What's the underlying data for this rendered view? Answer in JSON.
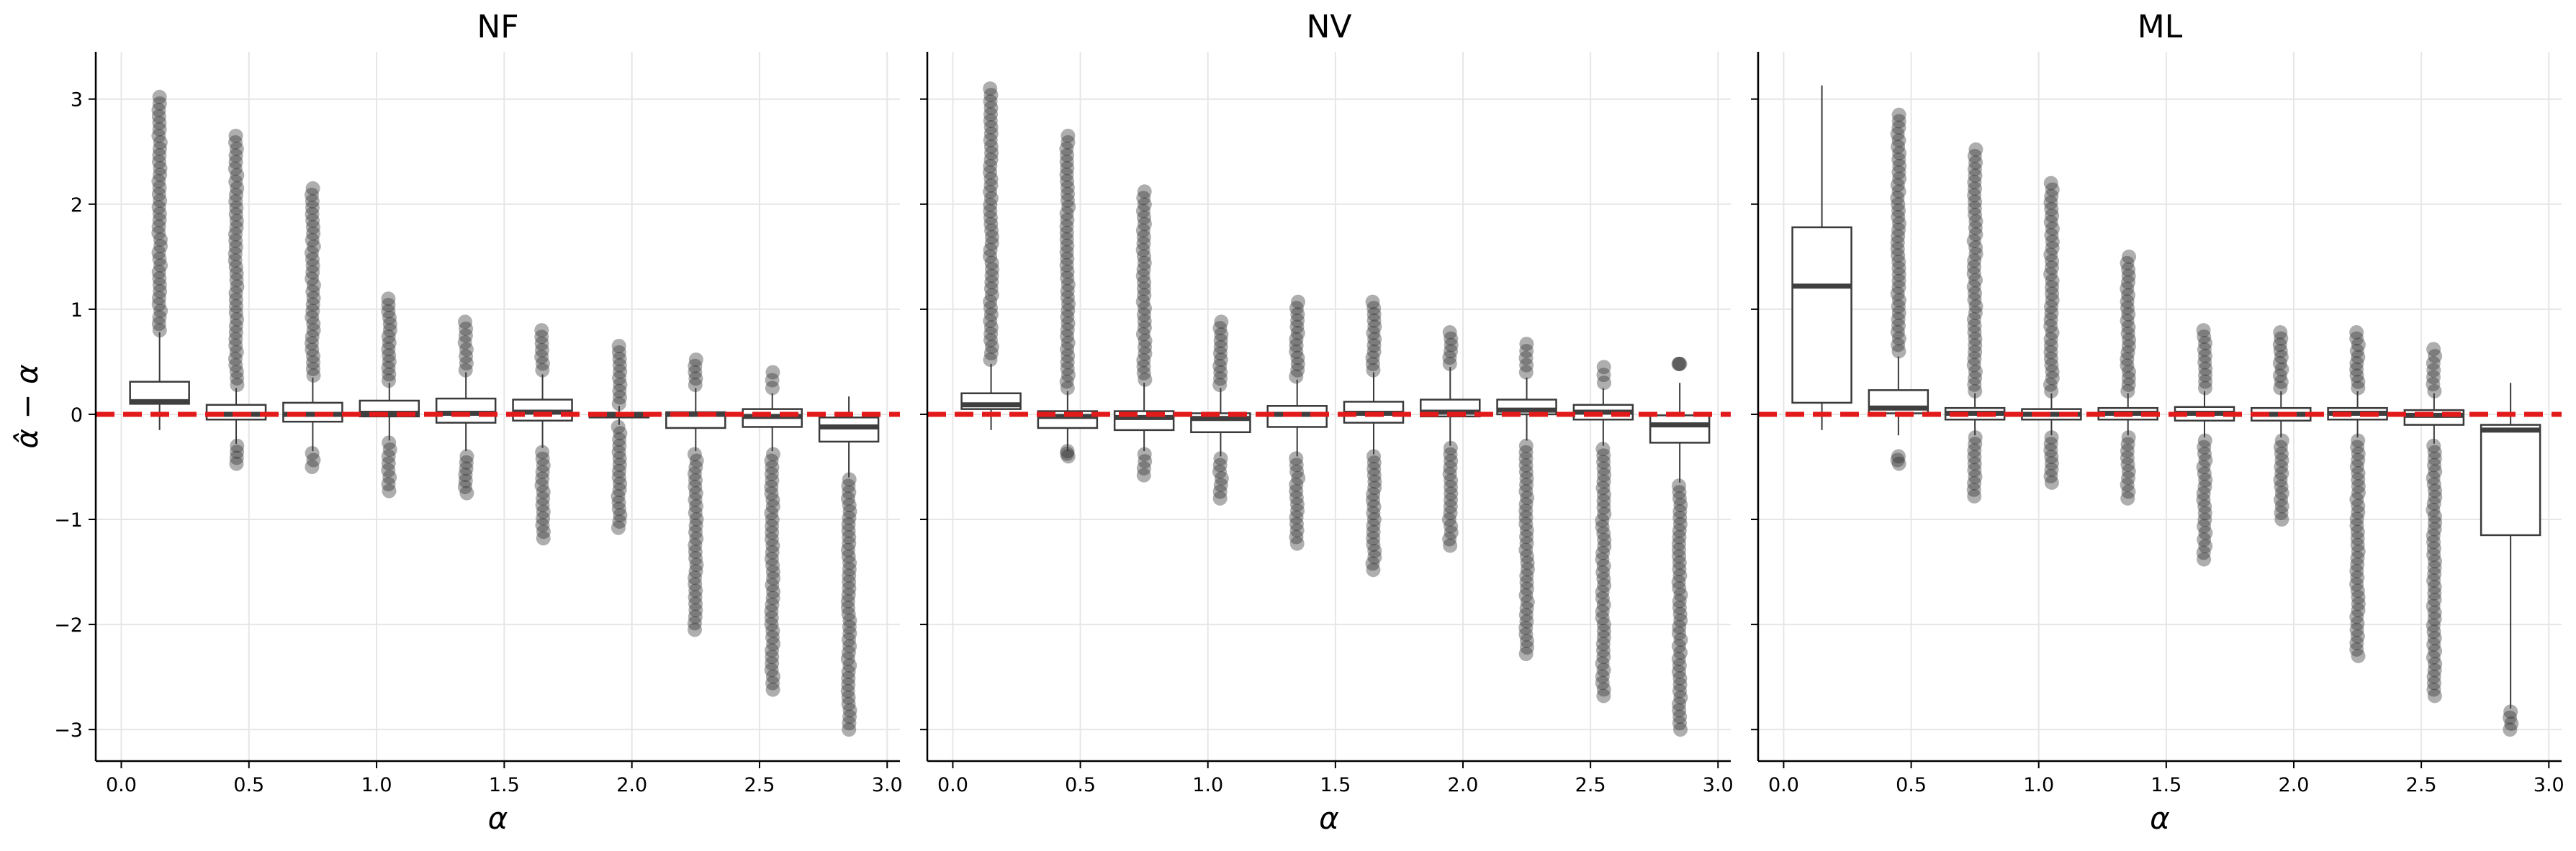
{
  "figure": {
    "ylabel": "α̂ − α",
    "colors": {
      "box_edge": "#3a3a3a",
      "median": "#3f3f3f",
      "outlier": "#2b2b2b",
      "reference_line": "#e31a1c",
      "grid": "#e6e6e6"
    }
  },
  "chart_data": [
    {
      "type": "box",
      "title": "NF",
      "xlabel": "α",
      "ylabel": "α̂ − α",
      "xlim": [
        -0.1,
        3.05
      ],
      "ylim": [
        -3.3,
        3.45
      ],
      "xticks": [
        "0.0",
        "0.5",
        "1.0",
        "1.5",
        "2.0",
        "2.5",
        "3.0"
      ],
      "yticks": [
        "−3",
        "−2",
        "−1",
        "0",
        "1",
        "2",
        "3"
      ],
      "reference_line": 0,
      "grid": true,
      "boxes": [
        {
          "alpha": 0.15,
          "q1": 0.1,
          "median": 0.12,
          "q3": 0.31,
          "whisker_low": -0.15,
          "whisker_high": 0.78,
          "outliers_high": [
            0.8,
            3.02
          ],
          "outliers_low": []
        },
        {
          "alpha": 0.45,
          "q1": -0.05,
          "median": 0.0,
          "q3": 0.09,
          "whisker_low": -0.28,
          "whisker_high": 0.25,
          "outliers_high": [
            0.28,
            2.65
          ],
          "outliers_low": [
            -0.47,
            -0.3
          ]
        },
        {
          "alpha": 0.75,
          "q1": -0.07,
          "median": 0.0,
          "q3": 0.11,
          "whisker_low": -0.35,
          "whisker_high": 0.35,
          "outliers_high": [
            0.37,
            2.15
          ],
          "outliers_low": [
            -0.5,
            -0.37
          ]
        },
        {
          "alpha": 1.05,
          "q1": -0.02,
          "median": 0.01,
          "q3": 0.13,
          "whisker_low": -0.25,
          "whisker_high": 0.3,
          "outliers_high": [
            0.32,
            1.1
          ],
          "outliers_low": [
            -0.73,
            -0.27
          ]
        },
        {
          "alpha": 1.35,
          "q1": -0.08,
          "median": 0.01,
          "q3": 0.15,
          "whisker_low": -0.35,
          "whisker_high": 0.4,
          "outliers_high": [
            0.42,
            0.88
          ],
          "outliers_low": [
            -0.75,
            -0.4
          ]
        },
        {
          "alpha": 1.65,
          "q1": -0.06,
          "median": 0.02,
          "q3": 0.14,
          "whisker_low": -0.32,
          "whisker_high": 0.38,
          "outliers_high": [
            0.42,
            0.8
          ],
          "outliers_low": [
            -1.18,
            -0.36
          ]
        },
        {
          "alpha": 1.95,
          "q1": -0.03,
          "median": 0.0,
          "q3": 0.01,
          "whisker_low": -0.1,
          "whisker_high": 0.08,
          "outliers_high": [
            0.1,
            0.65
          ],
          "outliers_low": [
            -1.08,
            -0.12
          ]
        },
        {
          "alpha": 2.25,
          "q1": -0.13,
          "median": 0.0,
          "q3": 0.02,
          "whisker_low": -0.35,
          "whisker_high": 0.25,
          "outliers_high": [
            0.28,
            0.52
          ],
          "outliers_low": [
            -2.05,
            -0.38
          ]
        },
        {
          "alpha": 2.55,
          "q1": -0.12,
          "median": -0.02,
          "q3": 0.05,
          "whisker_low": -0.35,
          "whisker_high": 0.2,
          "outliers_high": [
            0.25,
            0.4
          ],
          "outliers_low": [
            -2.62,
            -0.38
          ]
        },
        {
          "alpha": 2.85,
          "q1": -0.26,
          "median": -0.12,
          "q3": -0.03,
          "whisker_low": -0.6,
          "whisker_high": 0.17,
          "outliers_high": [],
          "outliers_low": [
            -3.0,
            -0.62
          ]
        }
      ]
    },
    {
      "type": "box",
      "title": "NV",
      "xlabel": "α",
      "ylabel": "",
      "xlim": [
        -0.1,
        3.05
      ],
      "ylim": [
        -3.3,
        3.45
      ],
      "xticks": [
        "0.0",
        "0.5",
        "1.0",
        "1.5",
        "2.0",
        "2.5",
        "3.0"
      ],
      "yticks": [],
      "reference_line": 0,
      "grid": true,
      "boxes": [
        {
          "alpha": 0.15,
          "q1": 0.05,
          "median": 0.09,
          "q3": 0.2,
          "whisker_low": -0.15,
          "whisker_high": 0.48,
          "outliers_high": [
            0.52,
            3.1
          ],
          "outliers_low": []
        },
        {
          "alpha": 0.45,
          "q1": -0.13,
          "median": -0.02,
          "q3": 0.03,
          "whisker_low": -0.35,
          "whisker_high": 0.22,
          "outliers_high": [
            0.25,
            2.65
          ],
          "outliers_low": [
            -0.4,
            -0.35
          ]
        },
        {
          "alpha": 0.75,
          "q1": -0.15,
          "median": -0.03,
          "q3": 0.03,
          "whisker_low": -0.35,
          "whisker_high": 0.3,
          "outliers_high": [
            0.33,
            2.12
          ],
          "outliers_low": [
            -0.58,
            -0.38
          ]
        },
        {
          "alpha": 1.05,
          "q1": -0.17,
          "median": -0.04,
          "q3": 0.01,
          "whisker_low": -0.4,
          "whisker_high": 0.25,
          "outliers_high": [
            0.28,
            0.88
          ],
          "outliers_low": [
            -0.8,
            -0.42
          ]
        },
        {
          "alpha": 1.35,
          "q1": -0.12,
          "median": 0.0,
          "q3": 0.08,
          "whisker_low": -0.4,
          "whisker_high": 0.33,
          "outliers_high": [
            0.36,
            1.07
          ],
          "outliers_low": [
            -1.23,
            -0.42
          ]
        },
        {
          "alpha": 1.65,
          "q1": -0.08,
          "median": 0.01,
          "q3": 0.12,
          "whisker_low": -0.38,
          "whisker_high": 0.4,
          "outliers_high": [
            0.42,
            1.07
          ],
          "outliers_low": [
            -1.48,
            -0.4
          ]
        },
        {
          "alpha": 1.95,
          "q1": -0.02,
          "median": 0.02,
          "q3": 0.14,
          "whisker_low": -0.3,
          "whisker_high": 0.45,
          "outliers_high": [
            0.48,
            0.78
          ],
          "outliers_low": [
            -1.25,
            -0.32
          ]
        },
        {
          "alpha": 2.25,
          "q1": 0.0,
          "median": 0.04,
          "q3": 0.14,
          "whisker_low": -0.25,
          "whisker_high": 0.35,
          "outliers_high": [
            0.4,
            0.67
          ],
          "outliers_low": [
            -2.28,
            -0.3
          ]
        },
        {
          "alpha": 2.55,
          "q1": -0.05,
          "median": 0.02,
          "q3": 0.09,
          "whisker_low": -0.3,
          "whisker_high": 0.25,
          "outliers_high": [
            0.3,
            0.45
          ],
          "outliers_low": [
            -2.68,
            -0.33
          ]
        },
        {
          "alpha": 2.85,
          "q1": -0.27,
          "median": -0.1,
          "q3": -0.01,
          "whisker_low": -0.65,
          "whisker_high": 0.3,
          "outliers_high": [
            0.48,
            0.48
          ],
          "outliers_low": [
            -3.0,
            -0.68
          ]
        }
      ]
    },
    {
      "type": "box",
      "title": "ML",
      "xlabel": "α",
      "ylabel": "",
      "xlim": [
        -0.1,
        3.05
      ],
      "ylim": [
        -3.3,
        3.45
      ],
      "xticks": [
        "0.0",
        "0.5",
        "1.0",
        "1.5",
        "2.0",
        "2.5",
        "3.0"
      ],
      "yticks": [],
      "reference_line": 0,
      "grid": true,
      "boxes": [
        {
          "alpha": 0.15,
          "q1": 0.11,
          "median": 1.22,
          "q3": 1.78,
          "whisker_low": -0.15,
          "whisker_high": 3.13,
          "outliers_high": [],
          "outliers_low": []
        },
        {
          "alpha": 0.45,
          "q1": 0.01,
          "median": 0.06,
          "q3": 0.23,
          "whisker_low": -0.2,
          "whisker_high": 0.55,
          "outliers_high": [
            0.6,
            2.85
          ],
          "outliers_low": [
            -0.47,
            -0.4
          ]
        },
        {
          "alpha": 0.75,
          "q1": -0.05,
          "median": 0.01,
          "q3": 0.06,
          "whisker_low": -0.2,
          "whisker_high": 0.2,
          "outliers_high": [
            0.22,
            2.52
          ],
          "outliers_low": [
            -0.78,
            -0.22
          ]
        },
        {
          "alpha": 1.05,
          "q1": -0.05,
          "median": 0.0,
          "q3": 0.05,
          "whisker_low": -0.2,
          "whisker_high": 0.2,
          "outliers_high": [
            0.22,
            2.2
          ],
          "outliers_low": [
            -0.65,
            -0.22
          ]
        },
        {
          "alpha": 1.35,
          "q1": -0.05,
          "median": 0.01,
          "q3": 0.06,
          "whisker_low": -0.2,
          "whisker_high": 0.2,
          "outliers_high": [
            0.22,
            1.5
          ],
          "outliers_low": [
            -0.8,
            -0.22
          ]
        },
        {
          "alpha": 1.65,
          "q1": -0.06,
          "median": 0.01,
          "q3": 0.07,
          "whisker_low": -0.22,
          "whisker_high": 0.22,
          "outliers_high": [
            0.25,
            0.8
          ],
          "outliers_low": [
            -1.38,
            -0.25
          ]
        },
        {
          "alpha": 1.95,
          "q1": -0.06,
          "median": 0.0,
          "q3": 0.06,
          "whisker_low": -0.22,
          "whisker_high": 0.22,
          "outliers_high": [
            0.25,
            0.78
          ],
          "outliers_low": [
            -1.0,
            -0.25
          ]
        },
        {
          "alpha": 2.25,
          "q1": -0.05,
          "median": 0.01,
          "q3": 0.06,
          "whisker_low": -0.22,
          "whisker_high": 0.22,
          "outliers_high": [
            0.25,
            0.78
          ],
          "outliers_low": [
            -2.3,
            -0.25
          ]
        },
        {
          "alpha": 2.55,
          "q1": -0.1,
          "median": -0.01,
          "q3": 0.04,
          "whisker_low": -0.28,
          "whisker_high": 0.2,
          "outliers_high": [
            0.22,
            0.62
          ],
          "outliers_low": [
            -2.68,
            -0.3
          ]
        },
        {
          "alpha": 2.85,
          "q1": -1.15,
          "median": -0.15,
          "q3": -0.1,
          "whisker_low": -2.8,
          "whisker_high": 0.3,
          "outliers_high": [],
          "outliers_low": [
            -3.0,
            -2.83
          ]
        }
      ]
    }
  ]
}
